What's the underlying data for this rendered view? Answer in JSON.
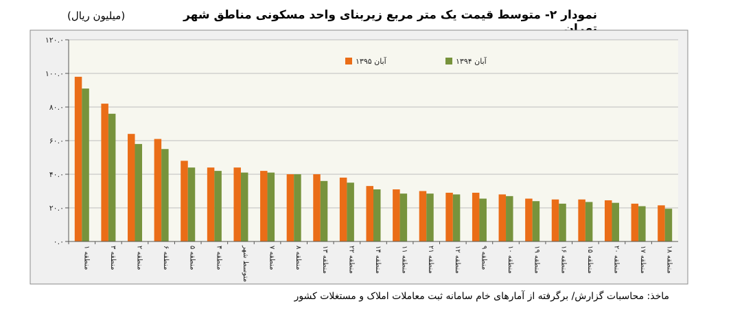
{
  "title": "نمودار ۲- متوسط قیمت یک متر مربع زیربنای واحد مسکونی مناطق شهر تهران",
  "unit": "(میلیون ریال)",
  "source": "ماخذ: محاسبات گزارش/ برگرفته از آمارهای خام سامانه ثبت معاملات املاک و مستغلات کشور",
  "colors": {
    "series_1395": "#ea6d17",
    "series_1394": "#77933c",
    "plot_bg": "#f7f7ef",
    "gridline": "#bdbdbd"
  },
  "chart_data": {
    "type": "bar",
    "ylim": [
      0,
      120
    ],
    "yticks": [
      0,
      20,
      40,
      60,
      80,
      100,
      120
    ],
    "ytick_labels": [
      "۰.۰",
      "۲۰.۰",
      "۴۰.۰",
      "۶۰.۰",
      "۸۰.۰",
      "۱۰۰.۰",
      "۱۲۰.۰"
    ],
    "grid": true,
    "legend_position": "top",
    "categories": [
      "منطقه ۱",
      "منطقه ۳",
      "منطقه ۲",
      "منطقه ۶",
      "منطقه ۵",
      "منطقه ۴",
      "متوسط شهر",
      "منطقه ۷",
      "منطقه ۸",
      "منطقه ۱۳",
      "منطقه ۲۲",
      "منطقه ۱۴",
      "منطقه ۱۱",
      "منطقه ۲۱",
      "منطقه ۱۲",
      "منطقه ۹",
      "منطقه ۱۰",
      "منطقه ۱۹",
      "منطقه ۱۶",
      "منطقه ۱۵",
      "منطقه ۲۰",
      "منطقه ۱۷",
      "منطقه ۱۸"
    ],
    "series": [
      {
        "name": "آبان ۱۳۹۵",
        "values": [
          98.0,
          82.0,
          64.0,
          61.0,
          48.0,
          44.0,
          44.0,
          42.0,
          40.0,
          40.0,
          38.0,
          33.0,
          31.0,
          30.0,
          29.0,
          29.0,
          28.0,
          25.5,
          25.0,
          25.0,
          24.5,
          22.5,
          21.5
        ]
      },
      {
        "name": "آبان ۱۳۹۴",
        "values": [
          91.0,
          76.0,
          58.0,
          55.0,
          44.0,
          42.0,
          41.0,
          41.0,
          40.0,
          36.0,
          35.0,
          31.0,
          28.5,
          28.5,
          28.0,
          25.5,
          27.0,
          24.0,
          22.5,
          23.5,
          23.0,
          21.0,
          19.5
        ]
      }
    ]
  }
}
